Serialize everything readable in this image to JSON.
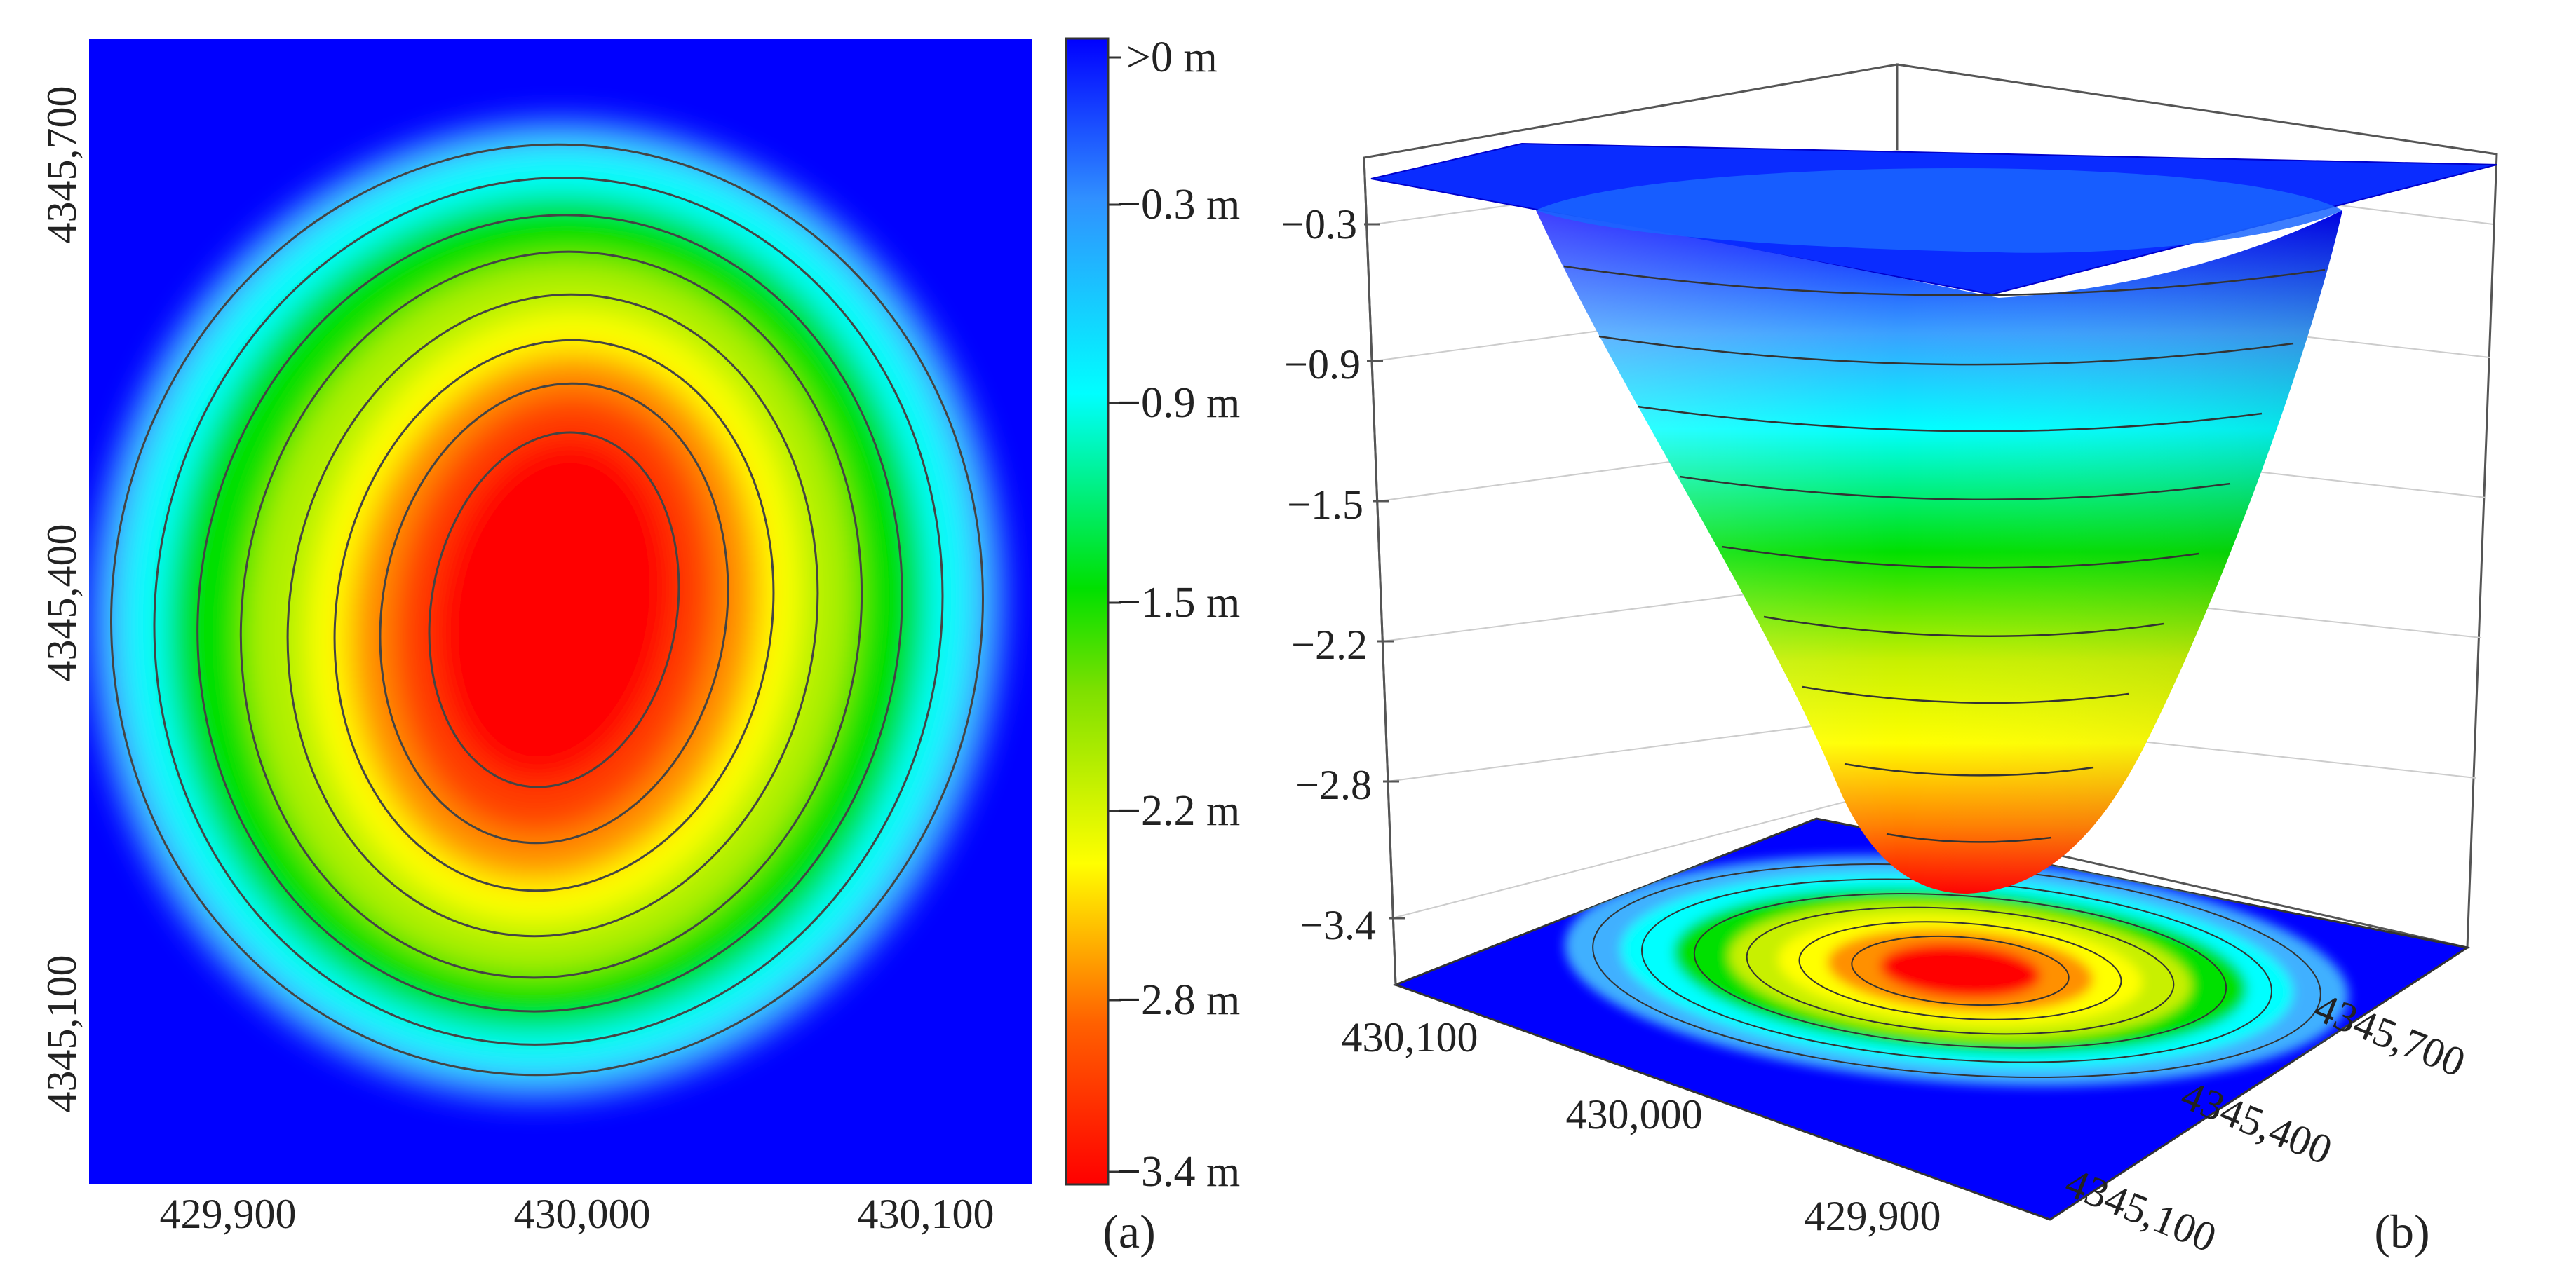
{
  "colors": {
    "scale": [
      "#ff0000",
      "#ff5a00",
      "#ffa500",
      "#ffff00",
      "#c8f000",
      "#00e000",
      "#00ffff",
      "#35b9ff",
      "#0000ff"
    ]
  },
  "panel_a": {
    "label": "(a)",
    "x_ticks": [
      "429,900",
      "430,000",
      "430,100"
    ],
    "y_ticks": [
      "4345,700",
      "4345,400",
      "4345,100"
    ],
    "colorbar": {
      "labels": [
        ">0 m",
        "−0.3 m",
        "−0.9 m",
        "−1.5 m",
        "−2.2 m",
        "−2.8 m",
        "−3.4 m"
      ]
    }
  },
  "panel_b": {
    "label": "(b)",
    "z_ticks": [
      "−0.3",
      "−0.9",
      "−1.5",
      "−2.2",
      "−2.8",
      "−3.4"
    ],
    "x_ticks": [
      "430,100",
      "430,000",
      "429,900"
    ],
    "y_ticks": [
      "4345,700",
      "4345,400",
      "4345,100"
    ]
  },
  "chart_data": [
    {
      "type": "heatmap",
      "title": "",
      "xlabel": "",
      "ylabel": "",
      "x_ticks": [
        429900,
        430000,
        430100
      ],
      "y_ticks": [
        4345100,
        4345400,
        4345700
      ],
      "colorbar_ticks": [
        0,
        -0.3,
        -0.9,
        -1.5,
        -2.2,
        -2.8,
        -3.4
      ],
      "colorbar_unit": "m",
      "value_range": [
        -3.4,
        0
      ],
      "minimum_location": [
        430000,
        4345350
      ],
      "contour_lines": true
    },
    {
      "type": "surface",
      "title": "",
      "z_ticks": [
        -0.3,
        -0.9,
        -1.5,
        -2.2,
        -2.8,
        -3.4
      ],
      "x_ticks": [
        430100,
        430000,
        429900
      ],
      "y_ticks": [
        4345700,
        4345400,
        4345100
      ],
      "value_range": [
        -3.4,
        0
      ],
      "projected_contour_on_base": true
    }
  ]
}
